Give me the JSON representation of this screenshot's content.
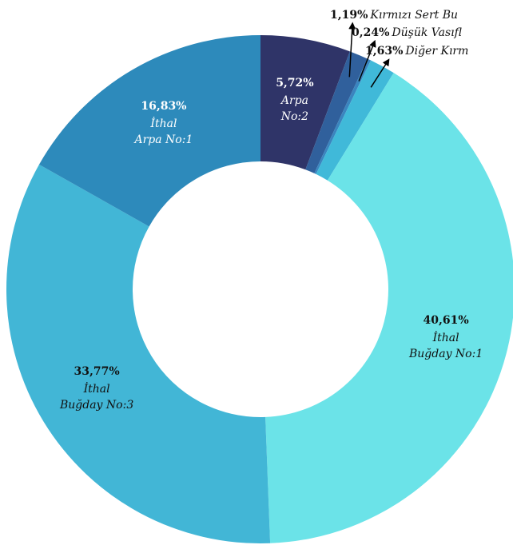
{
  "chart_data": {
    "type": "donut",
    "categories": [
      "Arpa No:2",
      "Kırmızı Sert Bu",
      "Düşük Vasıfl",
      "Diğer Kırm",
      "İthal Buğday No:1",
      "İthal Buğday No:3",
      "İthal Arpa No:1"
    ],
    "values": [
      5.72,
      1.19,
      0.24,
      1.63,
      40.61,
      33.77,
      16.83
    ],
    "value_labels": [
      "5,72%",
      "1,19%",
      "0,24%",
      "1,63%",
      "40,61%",
      "33,77%",
      "16,83%"
    ],
    "colors": [
      "#2f3468",
      "#30609c",
      "#3a85bf",
      "#40b9d9",
      "#6be3e8",
      "#42b6d6",
      "#2d8abb"
    ]
  }
}
